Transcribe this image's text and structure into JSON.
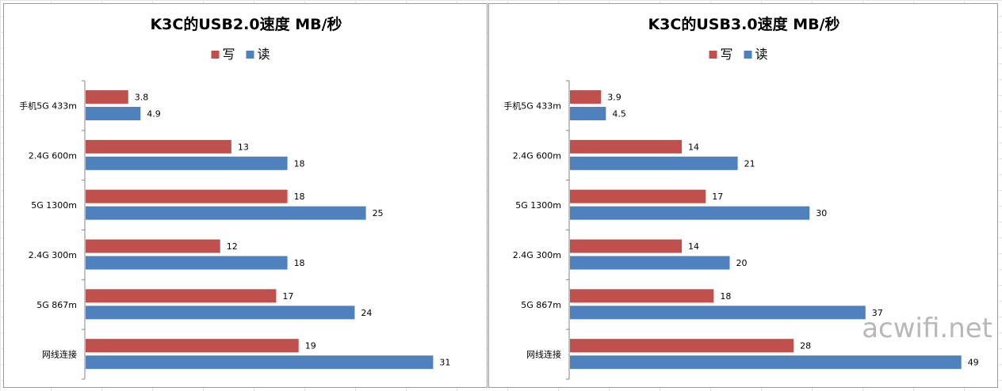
{
  "chart_data": [
    {
      "type": "bar",
      "orientation": "horizontal",
      "title": "K3C的USB2.0速度 MB/秒",
      "categories": [
        "手机5G 433m",
        "2.4G 600m",
        "5G 1300m",
        "2.4G 300m",
        "5G 867m",
        "网线连接"
      ],
      "series": [
        {
          "name": "写",
          "color": "#c0504d",
          "values": [
            3.8,
            13,
            18,
            12,
            17,
            19
          ]
        },
        {
          "name": "读",
          "color": "#4f81bd",
          "values": [
            4.9,
            18,
            25,
            18,
            24,
            31
          ]
        }
      ],
      "xlim": [
        0,
        35
      ],
      "grid": false,
      "legend_position": "top"
    },
    {
      "type": "bar",
      "orientation": "horizontal",
      "title": "K3C的USB3.0速度 MB/秒",
      "categories": [
        "手机5G 433m",
        "2.4G 600m",
        "5G 1300m",
        "2.4G 300m",
        "5G 867m",
        "网线连接"
      ],
      "series": [
        {
          "name": "写",
          "color": "#c0504d",
          "values": [
            3.9,
            14,
            17,
            14,
            18,
            28
          ]
        },
        {
          "name": "读",
          "color": "#4f81bd",
          "values": [
            4.5,
            21,
            30,
            20,
            37,
            49
          ]
        }
      ],
      "xlim": [
        0,
        53
      ],
      "grid": false,
      "legend_position": "top"
    }
  ],
  "watermark": "acwifi.net"
}
